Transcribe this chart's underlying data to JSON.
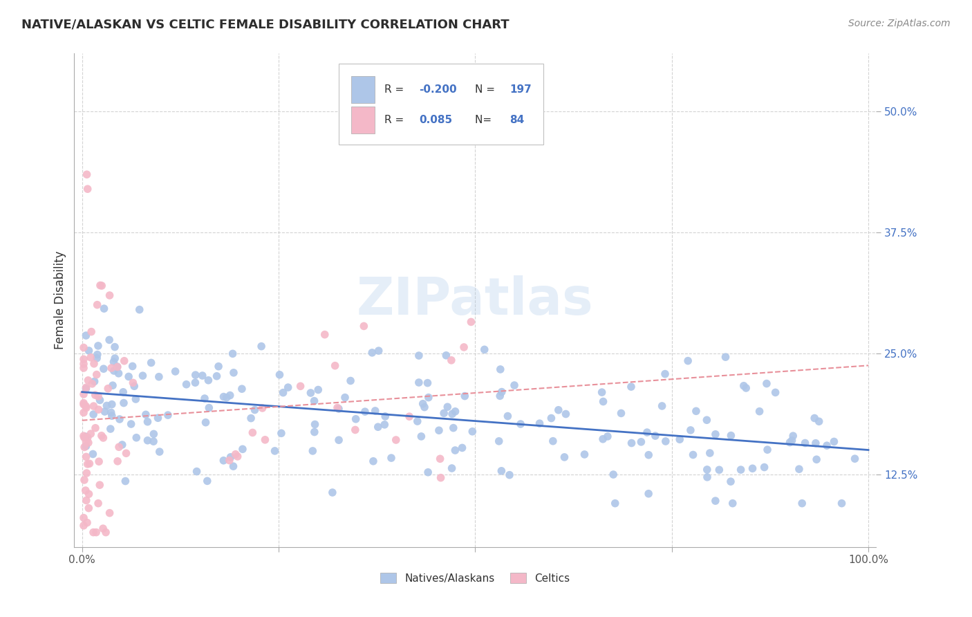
{
  "title": "NATIVE/ALASKAN VS CELTIC FEMALE DISABILITY CORRELATION CHART",
  "source": "Source: ZipAtlas.com",
  "ylabel": "Female Disability",
  "xlim": [
    -0.01,
    1.01
  ],
  "ylim": [
    0.05,
    0.56
  ],
  "y_ticks": [
    0.125,
    0.25,
    0.375,
    0.5
  ],
  "y_tick_labels": [
    "12.5%",
    "25.0%",
    "37.5%",
    "50.0%"
  ],
  "blue_color": "#aec6e8",
  "blue_line_color": "#4472c4",
  "pink_color": "#f4b8c8",
  "pink_line_color": "#e8909a",
  "watermark": "ZIPatlas",
  "legend_r1_label": "R = ",
  "legend_r1_val": "-0.200",
  "legend_n1_label": "N = ",
  "legend_n1_val": "197",
  "legend_r2_label": "R =  ",
  "legend_r2_val": "0.085",
  "legend_n2_label": "N= ",
  "legend_n2_val": "84"
}
